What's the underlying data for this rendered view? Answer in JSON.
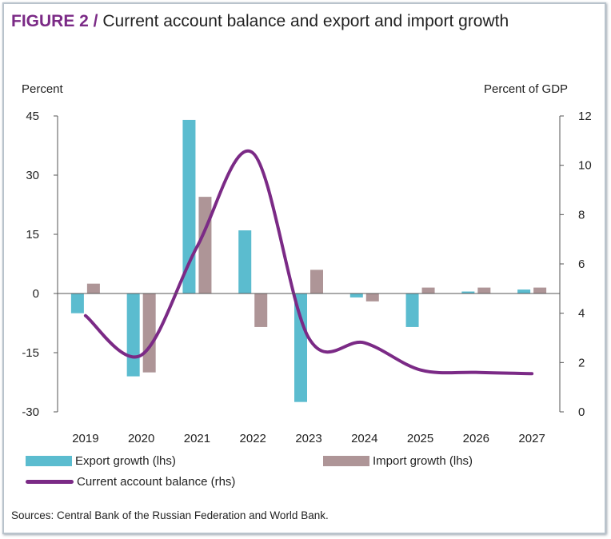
{
  "figure": {
    "tag": "FIGURE 2 /",
    "title": "Current account balance and export and import growth",
    "source": "Sources: Central Bank of the Russian Federation and World Bank."
  },
  "colors": {
    "export": "#5bbccf",
    "import": "#ae9597",
    "line": "#7b2a86",
    "axis": "#555555",
    "tag": "#7b2a86"
  },
  "chart_data": {
    "type": "bar",
    "title": "Current account balance and export and import growth",
    "ylabel_left": "Percent",
    "ylabel_right": "Percent of GDP",
    "categories": [
      "2019",
      "2020",
      "2021",
      "2022",
      "2023",
      "2024",
      "2025",
      "2026",
      "2027"
    ],
    "ylim_left": [
      -30,
      45
    ],
    "yticks_left": [
      -30,
      -15,
      0,
      15,
      30,
      45
    ],
    "ylim_right": [
      0,
      12
    ],
    "yticks_right": [
      0,
      2,
      4,
      6,
      8,
      10,
      12
    ],
    "series": [
      {
        "name": "Export growth (lhs)",
        "type": "bar",
        "axis": "left",
        "values": [
          -5,
          -21,
          44,
          16,
          -27.5,
          -1,
          -8.5,
          0.5,
          1
        ]
      },
      {
        "name": "Import growth (lhs)",
        "type": "bar",
        "axis": "left",
        "values": [
          2.5,
          -20,
          24.5,
          -8.5,
          6,
          -2,
          1.5,
          1.5,
          1.5
        ]
      },
      {
        "name": "Current account balance (rhs)",
        "type": "line",
        "axis": "right",
        "values": [
          3.9,
          2.3,
          6.7,
          10.5,
          3.0,
          2.8,
          1.7,
          1.6,
          1.55
        ]
      }
    ]
  }
}
